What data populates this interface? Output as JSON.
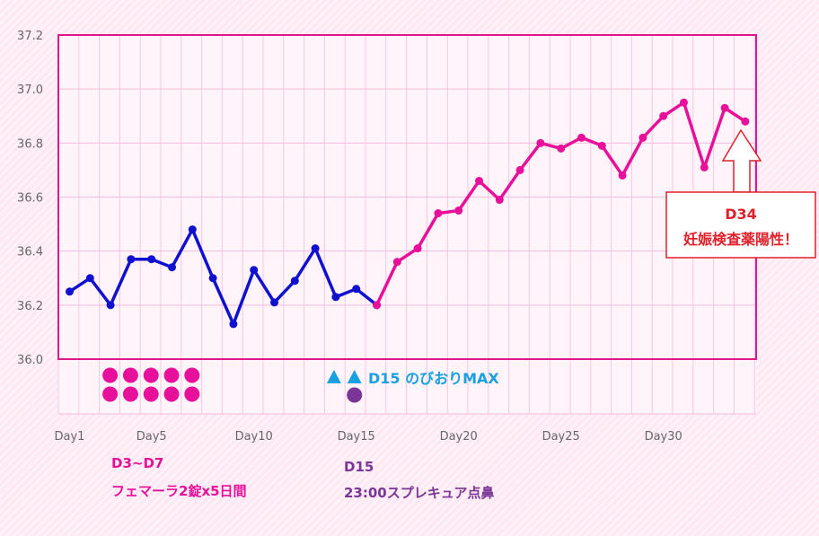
{
  "chart_data": {
    "type": "line",
    "x": [
      1,
      2,
      3,
      4,
      5,
      6,
      7,
      8,
      9,
      10,
      11,
      12,
      13,
      14,
      15,
      16,
      17,
      18,
      19,
      20,
      21,
      22,
      23,
      24,
      25,
      26,
      27,
      28,
      29,
      30,
      31,
      32,
      33,
      34
    ],
    "x_tick_labels": [
      {
        "day": 1,
        "label": "Day1"
      },
      {
        "day": 5,
        "label": "Day5"
      },
      {
        "day": 10,
        "label": "Day10"
      },
      {
        "day": 15,
        "label": "Day15"
      },
      {
        "day": 20,
        "label": "Day20"
      },
      {
        "day": 25,
        "label": "Day25"
      },
      {
        "day": 30,
        "label": "Day30"
      }
    ],
    "y_ticks": [
      "36.0",
      "36.2",
      "36.4",
      "36.6",
      "36.8",
      "37.0",
      "37.2"
    ],
    "ylim": [
      36.0,
      37.2
    ],
    "series": [
      {
        "color": "#1010d0",
        "x": [
          1,
          2,
          3,
          4,
          5,
          6,
          7,
          8,
          9,
          10,
          11,
          12,
          13,
          14,
          15,
          16
        ],
        "values": [
          36.25,
          36.3,
          36.2,
          36.37,
          36.37,
          36.34,
          36.48,
          36.3,
          36.13,
          36.33,
          36.21,
          36.29,
          36.41,
          36.23,
          36.26,
          36.2
        ]
      },
      {
        "color": "#e8109a",
        "x": [
          16,
          17,
          18,
          19,
          20,
          21,
          22,
          23,
          24,
          25,
          26,
          27,
          28,
          29,
          30,
          31,
          32,
          33,
          34
        ],
        "values": [
          36.2,
          36.36,
          36.41,
          36.54,
          36.55,
          36.66,
          36.59,
          36.7,
          36.8,
          36.78,
          36.82,
          36.79,
          36.68,
          36.82,
          36.9,
          36.95,
          36.71,
          36.93,
          36.88
        ]
      }
    ],
    "grid": true,
    "medication_dots": {
      "days": [
        3,
        4,
        5,
        6,
        7
      ],
      "rows": 2,
      "color": "#e8109a"
    },
    "ovulation_markers": {
      "triangle_days": [
        14,
        15
      ],
      "color": "#1aa0e0",
      "text": "D15 のびおりMAX"
    },
    "spray_dot": {
      "day": 15,
      "color": "#7b3596"
    },
    "annotation_box": {
      "day": 34,
      "line1": "D34",
      "line2": "妊娠検査薬陽性！",
      "border_color": "#e0202a",
      "text_color": "#e0202a"
    },
    "notes": [
      {
        "line1": "D3~D7",
        "line2": "フェマーラ2錠x5日間",
        "color": "#e8109a"
      },
      {
        "line1": "D15",
        "line2": "23:00スプレキュア点鼻",
        "color": "#7b3596"
      }
    ]
  }
}
